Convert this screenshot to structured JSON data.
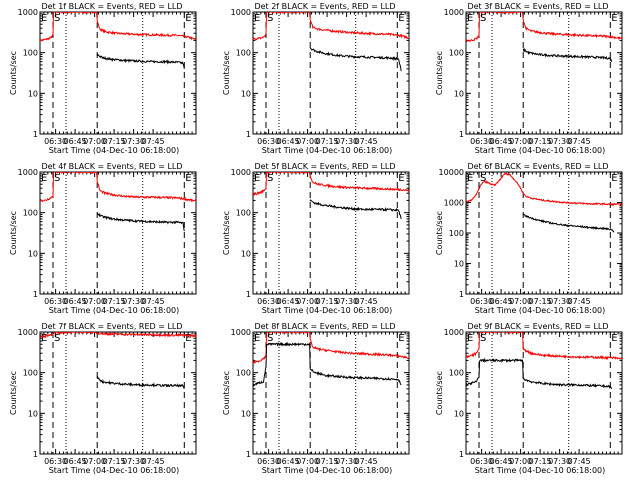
{
  "chart_data": [
    {
      "type": "line",
      "title": "Det 1f BLACK = Events, RED = LLD",
      "xlabel": "Start Time (04-Dec-10 06:18:00)",
      "ylabel": "Counts/sec",
      "yscale": "log",
      "ylim": [
        1,
        1000
      ],
      "yticks": [
        "1",
        "10",
        "100",
        "1000"
      ],
      "xticks": [
        "06:30",
        "06:45",
        "07:00",
        "07:15",
        "07:30",
        "07:45"
      ],
      "markers": [
        {
          "label": "E",
          "t": 0
        },
        {
          "label": "S",
          "t": 10
        },
        {
          "label": "E",
          "t": 111
        }
      ],
      "dashed_lines": [
        10,
        44,
        111
      ],
      "dotted_lines": [
        20,
        79
      ],
      "series": [
        {
          "name": "RED = LLD",
          "color": "#ff0000",
          "x": [
            0,
            4,
            8,
            10,
            10.5,
            43.5,
            44,
            46,
            50,
            58,
            66,
            76,
            86,
            96,
            106,
            114,
            120
          ],
          "y": [
            200,
            210,
            230,
            270,
            1000,
            1000,
            600,
            380,
            330,
            300,
            290,
            280,
            275,
            270,
            265,
            240,
            210
          ]
        },
        {
          "name": "BLACK = Events",
          "color": "#000000",
          "x": [
            44,
            48,
            56,
            66,
            76,
            86,
            96,
            106,
            110,
            111
          ],
          "y": [
            90,
            75,
            68,
            64,
            62,
            60,
            60,
            58,
            55,
            40
          ]
        }
      ]
    },
    {
      "type": "line",
      "title": "Det 2f BLACK = Events, RED = LLD",
      "xlabel": "Start Time (04-Dec-10 06:18:00)",
      "ylabel": "Counts/sec",
      "yscale": "log",
      "ylim": [
        1,
        1000
      ],
      "yticks": [
        "1",
        "10",
        "100",
        "1000"
      ],
      "xticks": [
        "06:30",
        "06:45",
        "07:00",
        "07:15",
        "07:30",
        "07:45"
      ],
      "markers": [
        {
          "label": "E",
          "t": 0
        },
        {
          "label": "S",
          "t": 10
        },
        {
          "label": "E",
          "t": 111
        }
      ],
      "dashed_lines": [
        10,
        44,
        111
      ],
      "dotted_lines": [
        20,
        79
      ],
      "series": [
        {
          "name": "RED = LLD",
          "color": "#ff0000",
          "x": [
            0,
            4,
            8,
            10,
            10.5,
            43.5,
            44,
            46,
            50,
            58,
            66,
            76,
            86,
            96,
            106,
            114,
            120
          ],
          "y": [
            220,
            220,
            240,
            280,
            1000,
            1000,
            650,
            420,
            380,
            350,
            330,
            310,
            300,
            290,
            280,
            260,
            230
          ]
        },
        {
          "name": "BLACK = Events",
          "color": "#000000",
          "x": [
            44,
            48,
            56,
            66,
            76,
            86,
            96,
            106,
            112,
            114
          ],
          "y": [
            130,
            110,
            95,
            85,
            80,
            78,
            76,
            74,
            70,
            35
          ]
        }
      ]
    },
    {
      "type": "line",
      "title": "Det 3f BLACK = Events, RED = LLD",
      "xlabel": "Start Time (04-Dec-10 06:18:00)",
      "ylabel": "Counts/sec",
      "yscale": "log",
      "ylim": [
        1,
        1000
      ],
      "yticks": [
        "1",
        "10",
        "100",
        "1000"
      ],
      "xticks": [
        "06:30",
        "06:45",
        "07:00",
        "07:15",
        "07:30",
        "07:45"
      ],
      "markers": [
        {
          "label": "E",
          "t": 0
        },
        {
          "label": "S",
          "t": 10
        },
        {
          "label": "E",
          "t": 111
        }
      ],
      "dashed_lines": [
        10,
        44,
        111
      ],
      "dotted_lines": [
        20,
        79
      ],
      "series": [
        {
          "name": "RED = LLD",
          "color": "#ff0000",
          "x": [
            0,
            4,
            8,
            10,
            10.5,
            43.5,
            44,
            46,
            50,
            58,
            66,
            76,
            86,
            96,
            106,
            114,
            120
          ],
          "y": [
            200,
            200,
            220,
            260,
            1000,
            1000,
            650,
            400,
            340,
            310,
            290,
            280,
            270,
            260,
            255,
            240,
            220
          ]
        },
        {
          "name": "BLACK = Events",
          "color": "#000000",
          "x": [
            44,
            48,
            56,
            66,
            76,
            86,
            96,
            106,
            111,
            112
          ],
          "y": [
            120,
            100,
            90,
            85,
            82,
            80,
            78,
            75,
            72,
            60
          ]
        }
      ]
    },
    {
      "type": "line",
      "title": "Det 4f BLACK = Events, RED = LLD",
      "xlabel": "Start Time (04-Dec-10 06:18:00)",
      "ylabel": "Counts/sec",
      "yscale": "log",
      "ylim": [
        1,
        1000
      ],
      "yticks": [
        "1",
        "10",
        "100",
        "1000"
      ],
      "xticks": [
        "06:30",
        "06:45",
        "07:00",
        "07:15",
        "07:30",
        "07:45"
      ],
      "markers": [
        {
          "label": "E",
          "t": 0
        },
        {
          "label": "S",
          "t": 10
        },
        {
          "label": "E",
          "t": 111
        }
      ],
      "dashed_lines": [
        10,
        44,
        111
      ],
      "dotted_lines": [
        20,
        79
      ],
      "series": [
        {
          "name": "RED = LLD",
          "color": "#ff0000",
          "x": [
            0,
            4,
            8,
            10,
            10.5,
            43.5,
            44,
            46,
            50,
            58,
            66,
            76,
            86,
            96,
            106,
            114,
            120
          ],
          "y": [
            200,
            200,
            230,
            260,
            1000,
            1000,
            600,
            350,
            300,
            270,
            250,
            240,
            240,
            235,
            230,
            210,
            190
          ]
        },
        {
          "name": "BLACK = Events",
          "color": "#000000",
          "x": [
            44,
            48,
            56,
            66,
            76,
            86,
            96,
            106,
            110,
            111
          ],
          "y": [
            95,
            80,
            70,
            65,
            62,
            60,
            58,
            58,
            55,
            35
          ]
        }
      ]
    },
    {
      "type": "line",
      "title": "Det 5f BLACK = Events, RED = LLD",
      "xlabel": "Start Time (04-Dec-10 06:18:00)",
      "ylabel": "Counts/sec",
      "yscale": "log",
      "ylim": [
        1,
        1000
      ],
      "yticks": [
        "1",
        "10",
        "100",
        "1000"
      ],
      "xticks": [
        "06:30",
        "06:45",
        "07:00",
        "07:15",
        "07:30",
        "07:45"
      ],
      "markers": [
        {
          "label": "E",
          "t": 0
        },
        {
          "label": "S",
          "t": 10
        },
        {
          "label": "E",
          "t": 111
        }
      ],
      "dashed_lines": [
        10,
        44,
        111
      ],
      "dotted_lines": [
        20,
        79
      ],
      "series": [
        {
          "name": "RED = LLD",
          "color": "#ff0000",
          "x": [
            0,
            4,
            8,
            10,
            10.5,
            43.5,
            44,
            46,
            50,
            58,
            66,
            76,
            86,
            96,
            106,
            114,
            120
          ],
          "y": [
            280,
            300,
            340,
            400,
            1000,
            1000,
            800,
            560,
            500,
            460,
            430,
            410,
            400,
            390,
            380,
            370,
            350
          ]
        },
        {
          "name": "BLACK = Events",
          "color": "#000000",
          "x": [
            44,
            48,
            56,
            66,
            76,
            86,
            96,
            106,
            112,
            114
          ],
          "y": [
            200,
            170,
            150,
            135,
            125,
            120,
            120,
            118,
            115,
            70
          ]
        }
      ]
    },
    {
      "type": "line",
      "title": "Det 6f BLACK = Events, RED = LLD",
      "xlabel": "Start Time (04-Dec-10 06:18:00)",
      "ylabel": "Counts/sec",
      "yscale": "log",
      "ylim": [
        1,
        10000
      ],
      "yticks": [
        "1",
        "10",
        "100",
        "1000",
        "10000"
      ],
      "xticks": [
        "06:30",
        "06:45",
        "07:00",
        "07:15",
        "07:30",
        "07:45"
      ],
      "markers": [
        {
          "label": "E",
          "t": 0
        },
        {
          "label": "S",
          "t": 10
        },
        {
          "label": "E",
          "t": 111
        }
      ],
      "dashed_lines": [
        10,
        44,
        111
      ],
      "dotted_lines": [
        20,
        79
      ],
      "series": [
        {
          "name": "RED = LLD",
          "color": "#ff0000",
          "x": [
            0,
            4,
            8,
            11,
            14,
            18,
            22,
            26,
            30,
            34,
            38,
            42,
            44,
            46,
            50,
            58,
            66,
            76,
            86,
            96,
            106,
            112,
            116,
            120
          ],
          "y": [
            1000,
            1200,
            1800,
            3500,
            5000,
            4200,
            3600,
            5500,
            9000,
            8000,
            5200,
            3000,
            2000,
            1600,
            1400,
            1200,
            1100,
            1000,
            950,
            900,
            900,
            850,
            900,
            820
          ]
        },
        {
          "name": "BLACK = Events",
          "color": "#000000",
          "x": [
            44,
            48,
            56,
            66,
            76,
            86,
            96,
            106,
            112,
            114
          ],
          "y": [
            400,
            330,
            260,
            210,
            180,
            165,
            150,
            140,
            130,
            110
          ]
        }
      ]
    },
    {
      "type": "line",
      "title": "Det 7f BLACK = Events, RED = LLD",
      "xlabel": "Start Time (04-Dec-10 06:18:00)",
      "ylabel": "Counts/sec",
      "yscale": "log",
      "ylim": [
        1,
        1000
      ],
      "yticks": [
        "1",
        "10",
        "100",
        "1000"
      ],
      "xticks": [
        "06:30",
        "06:45",
        "07:00",
        "07:15",
        "07:30",
        "07:45"
      ],
      "markers": [
        {
          "label": "E",
          "t": 0
        },
        {
          "label": "S",
          "t": 10
        },
        {
          "label": "E",
          "t": 111
        }
      ],
      "dashed_lines": [
        10,
        44,
        111
      ],
      "dotted_lines": [
        20,
        79
      ],
      "series": [
        {
          "name": "RED = LLD",
          "color": "#ff0000",
          "x": [
            0,
            4,
            8,
            12,
            20,
            30,
            40,
            44,
            50,
            60,
            70,
            80,
            90,
            100,
            110,
            120
          ],
          "y": [
            750,
            800,
            850,
            950,
            1000,
            1000,
            1000,
            950,
            900,
            880,
            870,
            860,
            850,
            840,
            830,
            800
          ]
        },
        {
          "name": "BLACK = Events",
          "color": "#000000",
          "x": [
            44,
            48,
            56,
            66,
            76,
            86,
            96,
            106,
            110,
            111
          ],
          "y": [
            75,
            60,
            55,
            52,
            50,
            50,
            48,
            48,
            47,
            40
          ]
        }
      ]
    },
    {
      "type": "line",
      "title": "Det 8f BLACK = Events, RED = LLD",
      "xlabel": "Start Time (04-Dec-10 06:18:00)",
      "ylabel": "Counts/sec",
      "yscale": "log",
      "ylim": [
        1,
        1000
      ],
      "yticks": [
        "1",
        "10",
        "100",
        "1000"
      ],
      "xticks": [
        "06:30",
        "06:45",
        "07:00",
        "07:15",
        "07:30",
        "07:45"
      ],
      "markers": [
        {
          "label": "E",
          "t": 0
        },
        {
          "label": "S",
          "t": 10
        },
        {
          "label": "E",
          "t": 111
        }
      ],
      "dashed_lines": [
        10,
        44,
        111
      ],
      "dotted_lines": [
        20,
        79
      ],
      "series": [
        {
          "name": "RED = LLD",
          "color": "#ff0000",
          "x": [
            0,
            4,
            8,
            10,
            10.5,
            43.5,
            44,
            46,
            50,
            58,
            66,
            76,
            86,
            96,
            106,
            114,
            120
          ],
          "y": [
            180,
            190,
            220,
            260,
            1000,
            1000,
            650,
            420,
            380,
            350,
            320,
            300,
            290,
            280,
            270,
            250,
            230
          ]
        },
        {
          "name": "BLACK = Events",
          "color": "#000000",
          "x": [
            0,
            4,
            8,
            10,
            10.5,
            43.5,
            44,
            48,
            56,
            66,
            76,
            86,
            96,
            106,
            112,
            114
          ],
          "y": [
            50,
            55,
            60,
            140,
            500,
            500,
            120,
            100,
            85,
            80,
            76,
            74,
            72,
            70,
            68,
            50
          ]
        }
      ]
    },
    {
      "type": "line",
      "title": "Det 9f BLACK = Events, RED = LLD",
      "xlabel": "Start Time (04-Dec-10 06:18:00)",
      "ylabel": "Counts/sec",
      "yscale": "log",
      "ylim": [
        1,
        1000
      ],
      "yticks": [
        "1",
        "10",
        "100",
        "1000"
      ],
      "xticks": [
        "06:30",
        "06:45",
        "07:00",
        "07:15",
        "07:30",
        "07:45"
      ],
      "markers": [
        {
          "label": "E",
          "t": 0
        },
        {
          "label": "S",
          "t": 10
        },
        {
          "label": "E",
          "t": 111
        }
      ],
      "dashed_lines": [
        10,
        44,
        111
      ],
      "dotted_lines": [
        20,
        79
      ],
      "series": [
        {
          "name": "RED = LLD",
          "color": "#ff0000",
          "x": [
            0,
            4,
            8,
            10,
            10.5,
            43.5,
            44,
            50,
            58,
            66,
            76,
            86,
            96,
            106,
            114,
            120
          ],
          "y": [
            240,
            260,
            300,
            400,
            1000,
            1000,
            380,
            300,
            270,
            260,
            250,
            245,
            240,
            235,
            230,
            220
          ]
        },
        {
          "name": "BLACK = Events",
          "color": "#000000",
          "x": [
            0,
            4,
            8,
            10,
            10.5,
            43.5,
            44,
            50,
            58,
            66,
            76,
            86,
            96,
            106,
            111,
            112
          ],
          "y": [
            50,
            55,
            60,
            80,
            200,
            200,
            70,
            60,
            55,
            52,
            50,
            50,
            48,
            47,
            45,
            40
          ]
        }
      ]
    }
  ]
}
